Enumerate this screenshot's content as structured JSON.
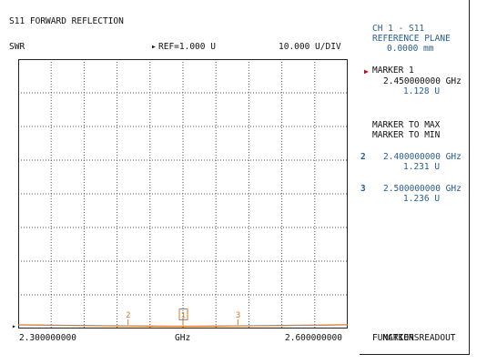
{
  "header": {
    "title": "S11 FORWARD REFLECTION",
    "format": "SWR",
    "ref_marker": "▸",
    "ref": "REF=1.000 U",
    "scale": "10.000 U/DIV"
  },
  "x_axis": {
    "start": "2.300000000",
    "unit": "GHz",
    "stop": "2.600000000"
  },
  "right_panel": {
    "channel": "CH 1 - S11",
    "ref_plane_label": "REFERENCE PLANE",
    "ref_plane_value": "0.0000 mm",
    "active_marker_arrow": "▶",
    "marker1_label": "MARKER 1",
    "marker1_freq": "2.450000000 GHz",
    "marker1_value": "1.128 U",
    "marker_to_max": "MARKER TO MAX",
    "marker_to_min": "MARKER TO MIN",
    "marker2_num": "2",
    "marker2_freq": "2.400000000 GHz",
    "marker2_value": "1.231 U",
    "marker3_num": "3",
    "marker3_freq": "2.500000000 GHz",
    "marker3_value": "1.236 U",
    "readout_line1": "MARKER READOUT",
    "readout_line2": "FUNCTIONS"
  },
  "plot_markers": {
    "m1": "1",
    "m2": "2",
    "m3": "3"
  },
  "colors": {
    "trace": "#e07a2e",
    "marker": "#d9772a",
    "panel_text": "#2b5e8c",
    "grid": "#555555",
    "active_arrow": "#d0001a"
  },
  "trace_data": {
    "x_start_ghz": 2.3,
    "x_stop_ghz": 2.6,
    "ref_value": 1.0,
    "units_per_div": 10,
    "divisions": 10,
    "points": [
      [
        2.3,
        1.55
      ],
      [
        2.32,
        1.48
      ],
      [
        2.34,
        1.4
      ],
      [
        2.36,
        1.34
      ],
      [
        2.38,
        1.27
      ],
      [
        2.4,
        1.231
      ],
      [
        2.42,
        1.18
      ],
      [
        2.44,
        1.14
      ],
      [
        2.45,
        1.128
      ],
      [
        2.46,
        1.14
      ],
      [
        2.48,
        1.19
      ],
      [
        2.5,
        1.236
      ],
      [
        2.52,
        1.3
      ],
      [
        2.54,
        1.36
      ],
      [
        2.56,
        1.42
      ],
      [
        2.58,
        1.49
      ],
      [
        2.6,
        1.56
      ]
    ]
  }
}
